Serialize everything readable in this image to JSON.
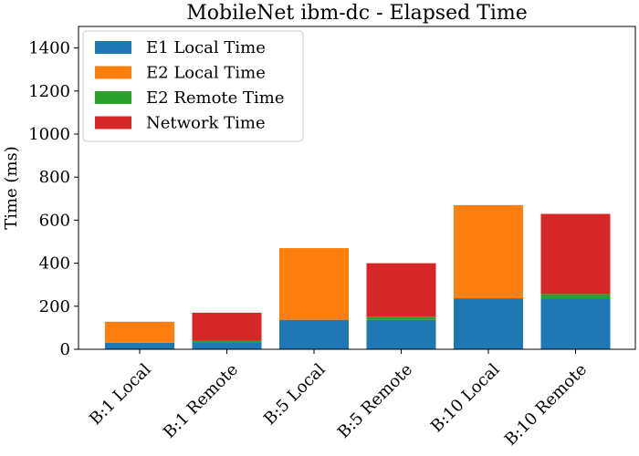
{
  "chart_data": {
    "type": "bar",
    "stacked": true,
    "title": "MobileNet ibm-dc - Elapsed Time",
    "xlabel": "",
    "ylabel": "Time (ms)",
    "ylim": [
      0,
      1500
    ],
    "yticks": [
      0,
      200,
      400,
      600,
      800,
      1000,
      1200,
      1400
    ],
    "grid": false,
    "legend_position": "top-left",
    "categories": [
      "B:1 Local",
      "B:1 Remote",
      "B:5 Local",
      "B:5 Remote",
      "B:10 Local",
      "B:10 Remote"
    ],
    "series": [
      {
        "name": "E1 Local Time",
        "color": "#1f77b4",
        "values": [
          30,
          32,
          137,
          137,
          237,
          237
        ]
      },
      {
        "name": "E2 Local Time",
        "color": "#ff7f0e",
        "values": [
          98,
          0,
          333,
          0,
          433,
          0
        ]
      },
      {
        "name": "E2 Remote Time",
        "color": "#2ca02c",
        "values": [
          0,
          8,
          0,
          15,
          0,
          20
        ]
      },
      {
        "name": "Network Time",
        "color": "#d62728",
        "values": [
          0,
          130,
          0,
          248,
          0,
          372
        ]
      }
    ]
  }
}
